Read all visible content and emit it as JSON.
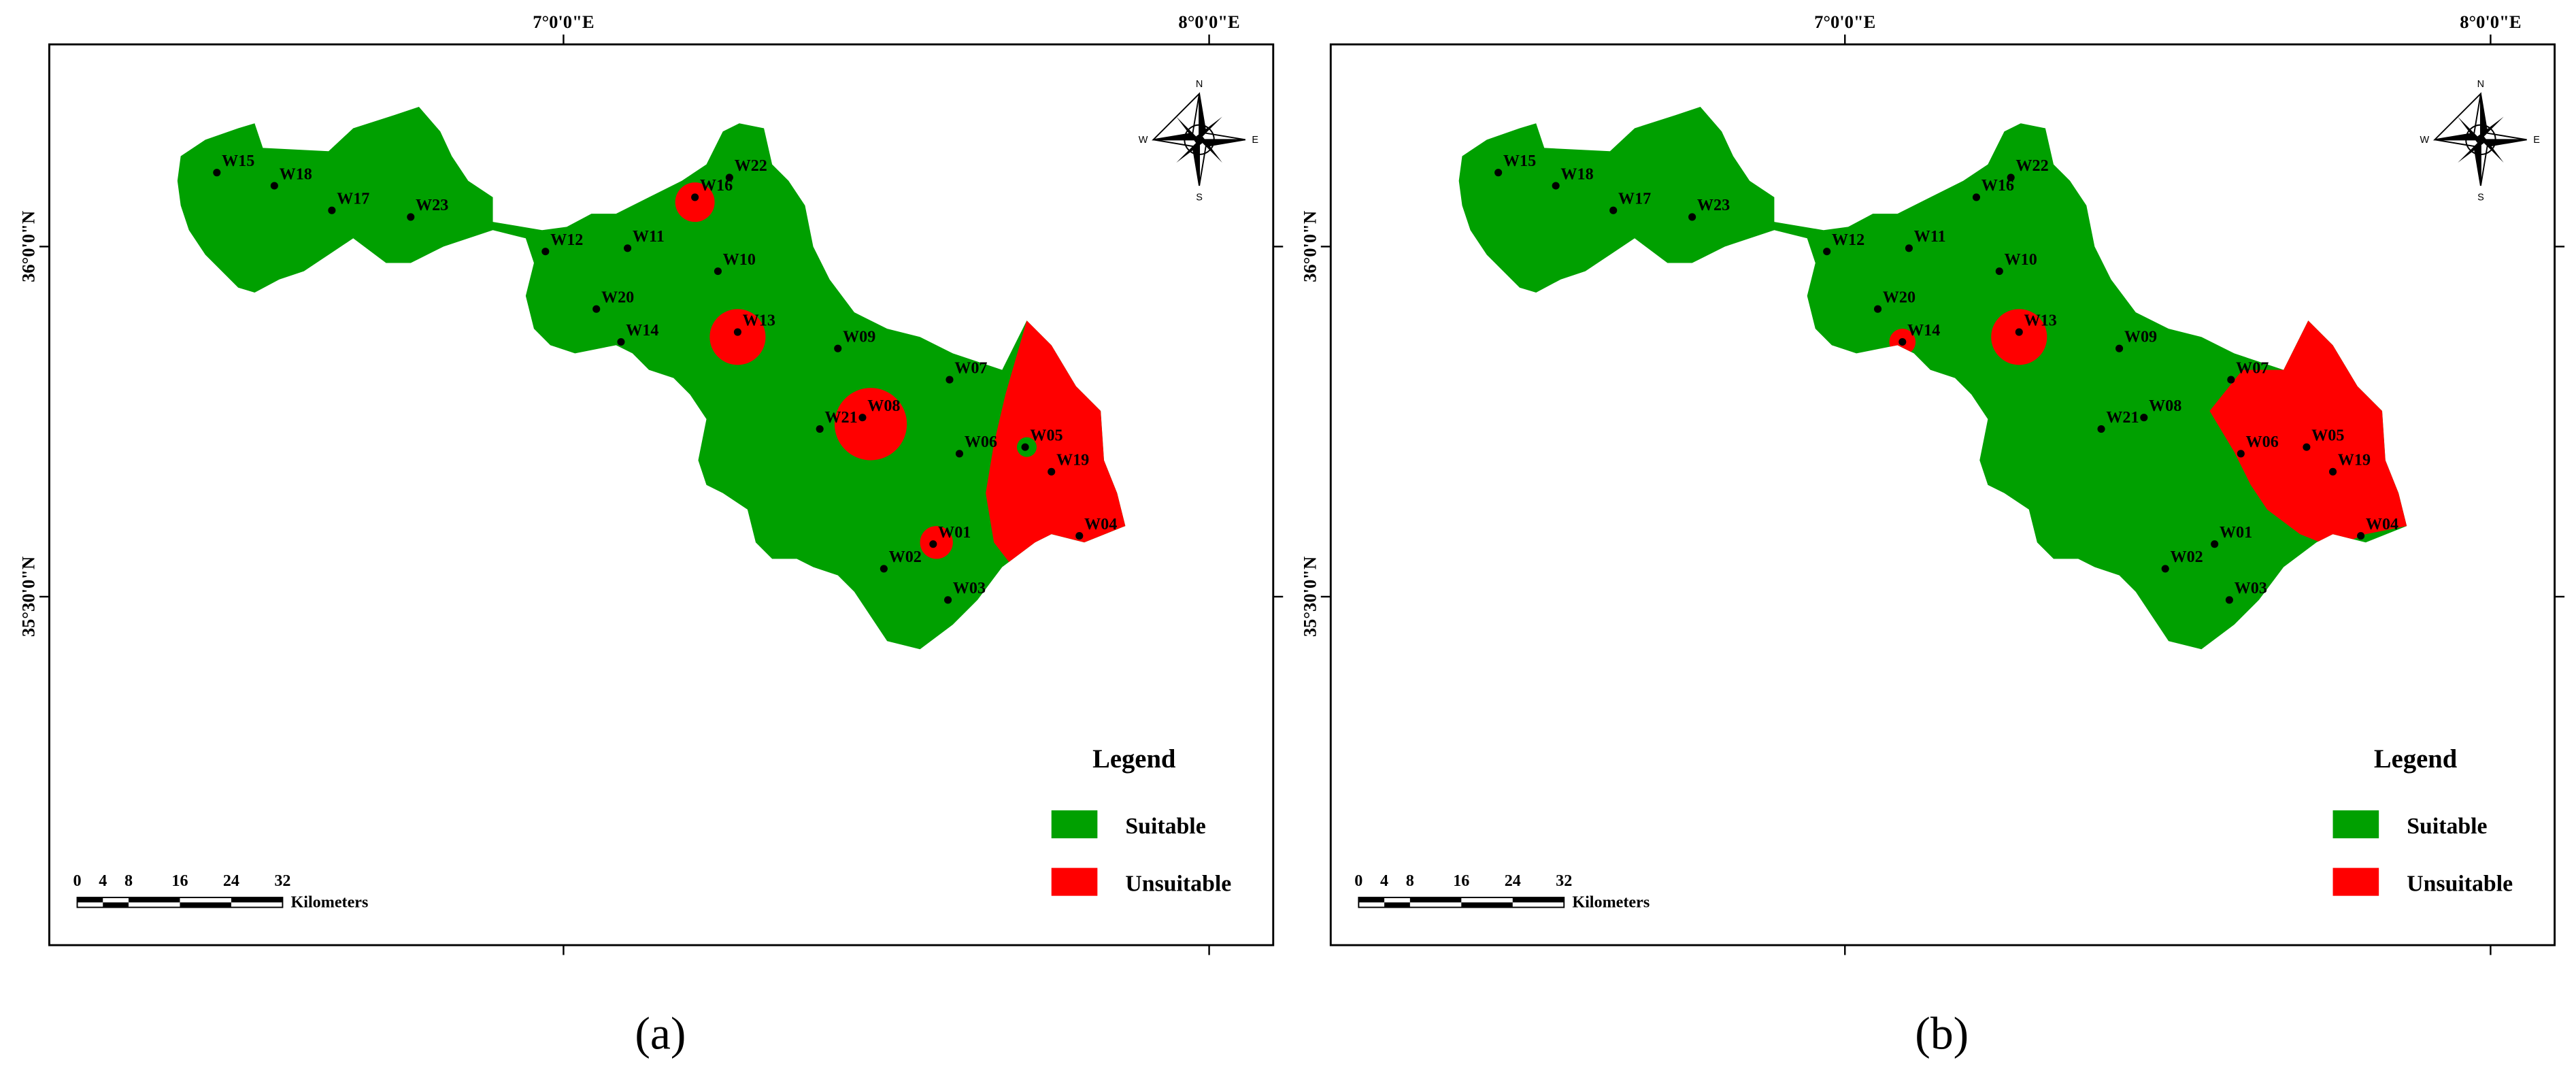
{
  "panels": [
    {
      "label": "(a)"
    },
    {
      "label": "(b)"
    }
  ],
  "longitude_labels": [
    "7°0'0\"E",
    "8°0'0\"E"
  ],
  "latitude_labels": [
    "36°0'0\"N",
    "35°30'0\"N"
  ],
  "wells": [
    "W15",
    "W18",
    "W17",
    "W23",
    "W12",
    "W11",
    "W16",
    "W22",
    "W10",
    "W20",
    "W14",
    "W13",
    "W09",
    "W07",
    "W21",
    "W08",
    "W06",
    "W05",
    "W19",
    "W01",
    "W04",
    "W02",
    "W03"
  ],
  "legend": {
    "title": "Legend",
    "items": [
      {
        "label": "Suitable",
        "color": "#00a000"
      },
      {
        "label": "Unsuitable",
        "color": "#ff0000"
      }
    ]
  },
  "scale": {
    "ticks": [
      0,
      4,
      8,
      16,
      24,
      32
    ],
    "unit": "Kilometers"
  },
  "compass": {
    "north": "N",
    "east": "E",
    "south": "S",
    "west": "W"
  }
}
